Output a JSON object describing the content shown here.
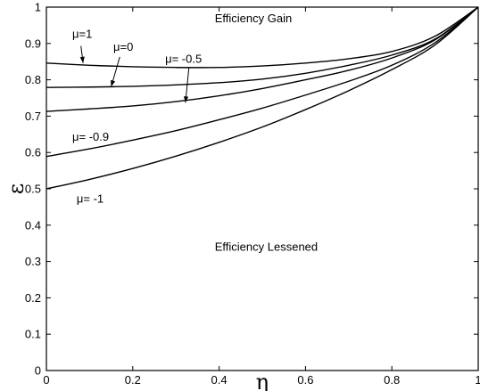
{
  "chart_data": {
    "type": "line",
    "title": "",
    "xlabel": "η",
    "ylabel": "ε",
    "xlim": [
      0,
      1
    ],
    "ylim": [
      0,
      1
    ],
    "grid": false,
    "x_ticks": [
      "0",
      "0.2",
      "0.4",
      "0.6",
      "0.8",
      "1"
    ],
    "y_ticks": [
      "0",
      "0.1",
      "0.2",
      "0.3",
      "0.4",
      "0.5",
      "0.6",
      "0.7",
      "0.8",
      "0.9",
      "1"
    ],
    "x": [
      0,
      0.1,
      0.2,
      0.3,
      0.4,
      0.5,
      0.6,
      0.7,
      0.8,
      0.9,
      1.0
    ],
    "series": [
      {
        "values": [
          0.846,
          0.84,
          0.836,
          0.834,
          0.834,
          0.838,
          0.846,
          0.858,
          0.878,
          0.92,
          1.0
        ]
      },
      {
        "values": [
          0.779,
          0.78,
          0.782,
          0.786,
          0.792,
          0.802,
          0.818,
          0.84,
          0.868,
          0.912,
          1.0
        ]
      },
      {
        "values": [
          0.713,
          0.72,
          0.728,
          0.74,
          0.756,
          0.776,
          0.8,
          0.826,
          0.86,
          0.91,
          1.0
        ]
      },
      {
        "values": [
          0.589,
          0.61,
          0.634,
          0.66,
          0.69,
          0.722,
          0.758,
          0.796,
          0.84,
          0.902,
          1.0
        ]
      },
      {
        "values": [
          0.5,
          0.526,
          0.556,
          0.59,
          0.628,
          0.67,
          0.718,
          0.77,
          0.828,
          0.896,
          1.0
        ]
      }
    ],
    "annotations": [
      {
        "id": "mu1",
        "text": "μ=1",
        "label_at": [
          0.06,
          0.915
        ],
        "arrow_from": [
          0.08,
          0.893
        ],
        "arrow_to": [
          0.085,
          0.846
        ]
      },
      {
        "id": "mu0",
        "text": "μ=0",
        "label_at": [
          0.155,
          0.88
        ],
        "arrow_from": [
          0.17,
          0.863
        ],
        "arrow_to": [
          0.15,
          0.781
        ]
      },
      {
        "id": "mu-05",
        "text": "μ= -0.5",
        "label_at": [
          0.275,
          0.847
        ],
        "arrow_from": [
          0.33,
          0.833
        ],
        "arrow_to": [
          0.322,
          0.737
        ]
      },
      {
        "id": "mu-09",
        "text": "μ= -0.9",
        "label_at": [
          0.06,
          0.632
        ],
        "arrow_from": null,
        "arrow_to": null
      },
      {
        "id": "mu-1",
        "text": "μ= -1",
        "label_at": [
          0.07,
          0.462
        ],
        "arrow_from": null,
        "arrow_to": null
      }
    ],
    "region_labels": [
      {
        "id": "gain",
        "text": "Efficiency Gain",
        "at": [
          0.39,
          0.958
        ]
      },
      {
        "id": "lessened",
        "text": "Efficiency Lessened",
        "at": [
          0.39,
          0.33
        ]
      }
    ]
  }
}
